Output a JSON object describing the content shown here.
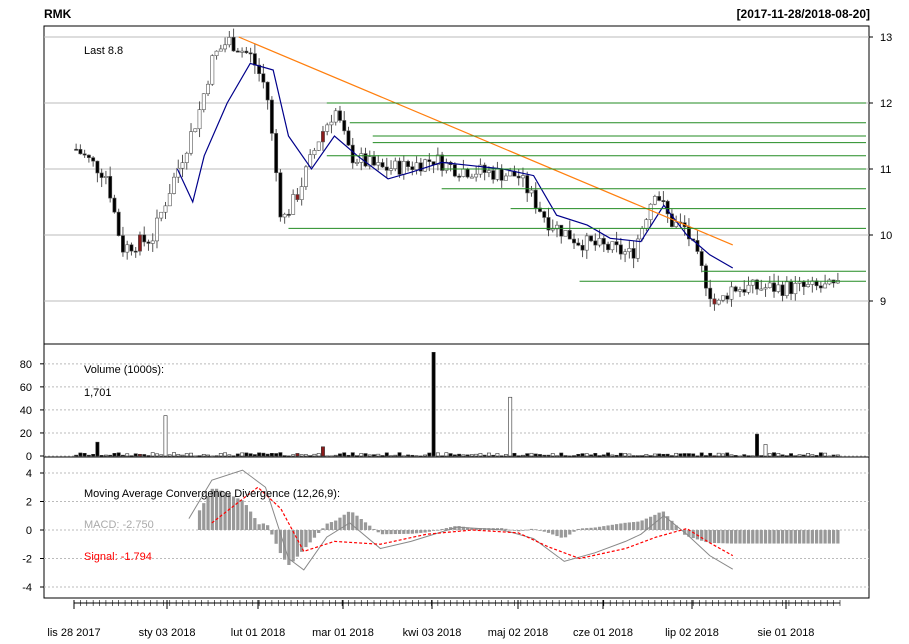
{
  "chart_data": {
    "type": "candlestick",
    "symbol": "RMK",
    "date_range": "[2017-11-28/2018-08-20]",
    "last_label": "Last 8.8",
    "colors": {
      "up": "#ffffff",
      "down": "#000000",
      "highlight": "#8b1a1a",
      "ma": "#00008b",
      "trendline": "#ff7f0e",
      "resistance": "#228b22",
      "macd_line": "#888888",
      "signal_line": "#ff0000"
    },
    "x_ticks": [
      "lis 28 2017",
      "sty 03 2018",
      "lut 01 2018",
      "mar 01 2018",
      "kwi 03 2018",
      "maj 02 2018",
      "cze 01 2018",
      "lip 02 2018",
      "sie 01 2018"
    ],
    "price_panel": {
      "y_ticks": [
        9,
        10,
        11,
        12,
        13
      ],
      "ylim": [
        8.4,
        13.0
      ],
      "moving_average": [
        [
          0.135,
          11.0
        ],
        [
          0.155,
          10.5
        ],
        [
          0.17,
          11.2
        ],
        [
          0.2,
          12.0
        ],
        [
          0.23,
          12.6
        ],
        [
          0.26,
          12.5
        ],
        [
          0.28,
          11.5
        ],
        [
          0.31,
          11.0
        ],
        [
          0.34,
          11.5
        ],
        [
          0.37,
          11.2
        ],
        [
          0.41,
          10.85
        ],
        [
          0.44,
          10.95
        ],
        [
          0.48,
          11.1
        ],
        [
          0.52,
          11.05
        ],
        [
          0.56,
          11.0
        ],
        [
          0.6,
          10.9
        ],
        [
          0.63,
          10.3
        ],
        [
          0.67,
          10.15
        ],
        [
          0.7,
          9.95
        ],
        [
          0.74,
          9.9
        ],
        [
          0.77,
          10.45
        ],
        [
          0.8,
          10.0
        ],
        [
          0.83,
          9.7
        ],
        [
          0.86,
          9.5
        ]
      ],
      "trendline": [
        [
          0.215,
          13.0
        ],
        [
          0.86,
          9.85
        ]
      ],
      "resistance_lines": [
        [
          0.33,
          12.0
        ],
        [
          0.36,
          11.7
        ],
        [
          0.39,
          11.5
        ],
        [
          0.39,
          11.4
        ],
        [
          0.33,
          11.2
        ],
        [
          0.48,
          11.0
        ],
        [
          0.48,
          10.7
        ],
        [
          0.57,
          10.4
        ],
        [
          0.28,
          10.1
        ],
        [
          0.82,
          9.45
        ],
        [
          0.66,
          9.3
        ]
      ]
    },
    "volume_panel": {
      "label": "Volume (1000s):",
      "value": "1,701",
      "y_ticks": [
        0,
        20,
        40,
        60,
        80
      ],
      "ylim": [
        0,
        92
      ]
    },
    "macd_panel": {
      "title": "Moving Average Convergence Divergence (12,26,9):",
      "macd_label": "MACD: -2.750",
      "signal_label": "Signal: -1.794",
      "y_ticks": [
        -4,
        -2,
        0,
        2,
        4
      ],
      "ylim": [
        -5,
        5
      ]
    }
  }
}
